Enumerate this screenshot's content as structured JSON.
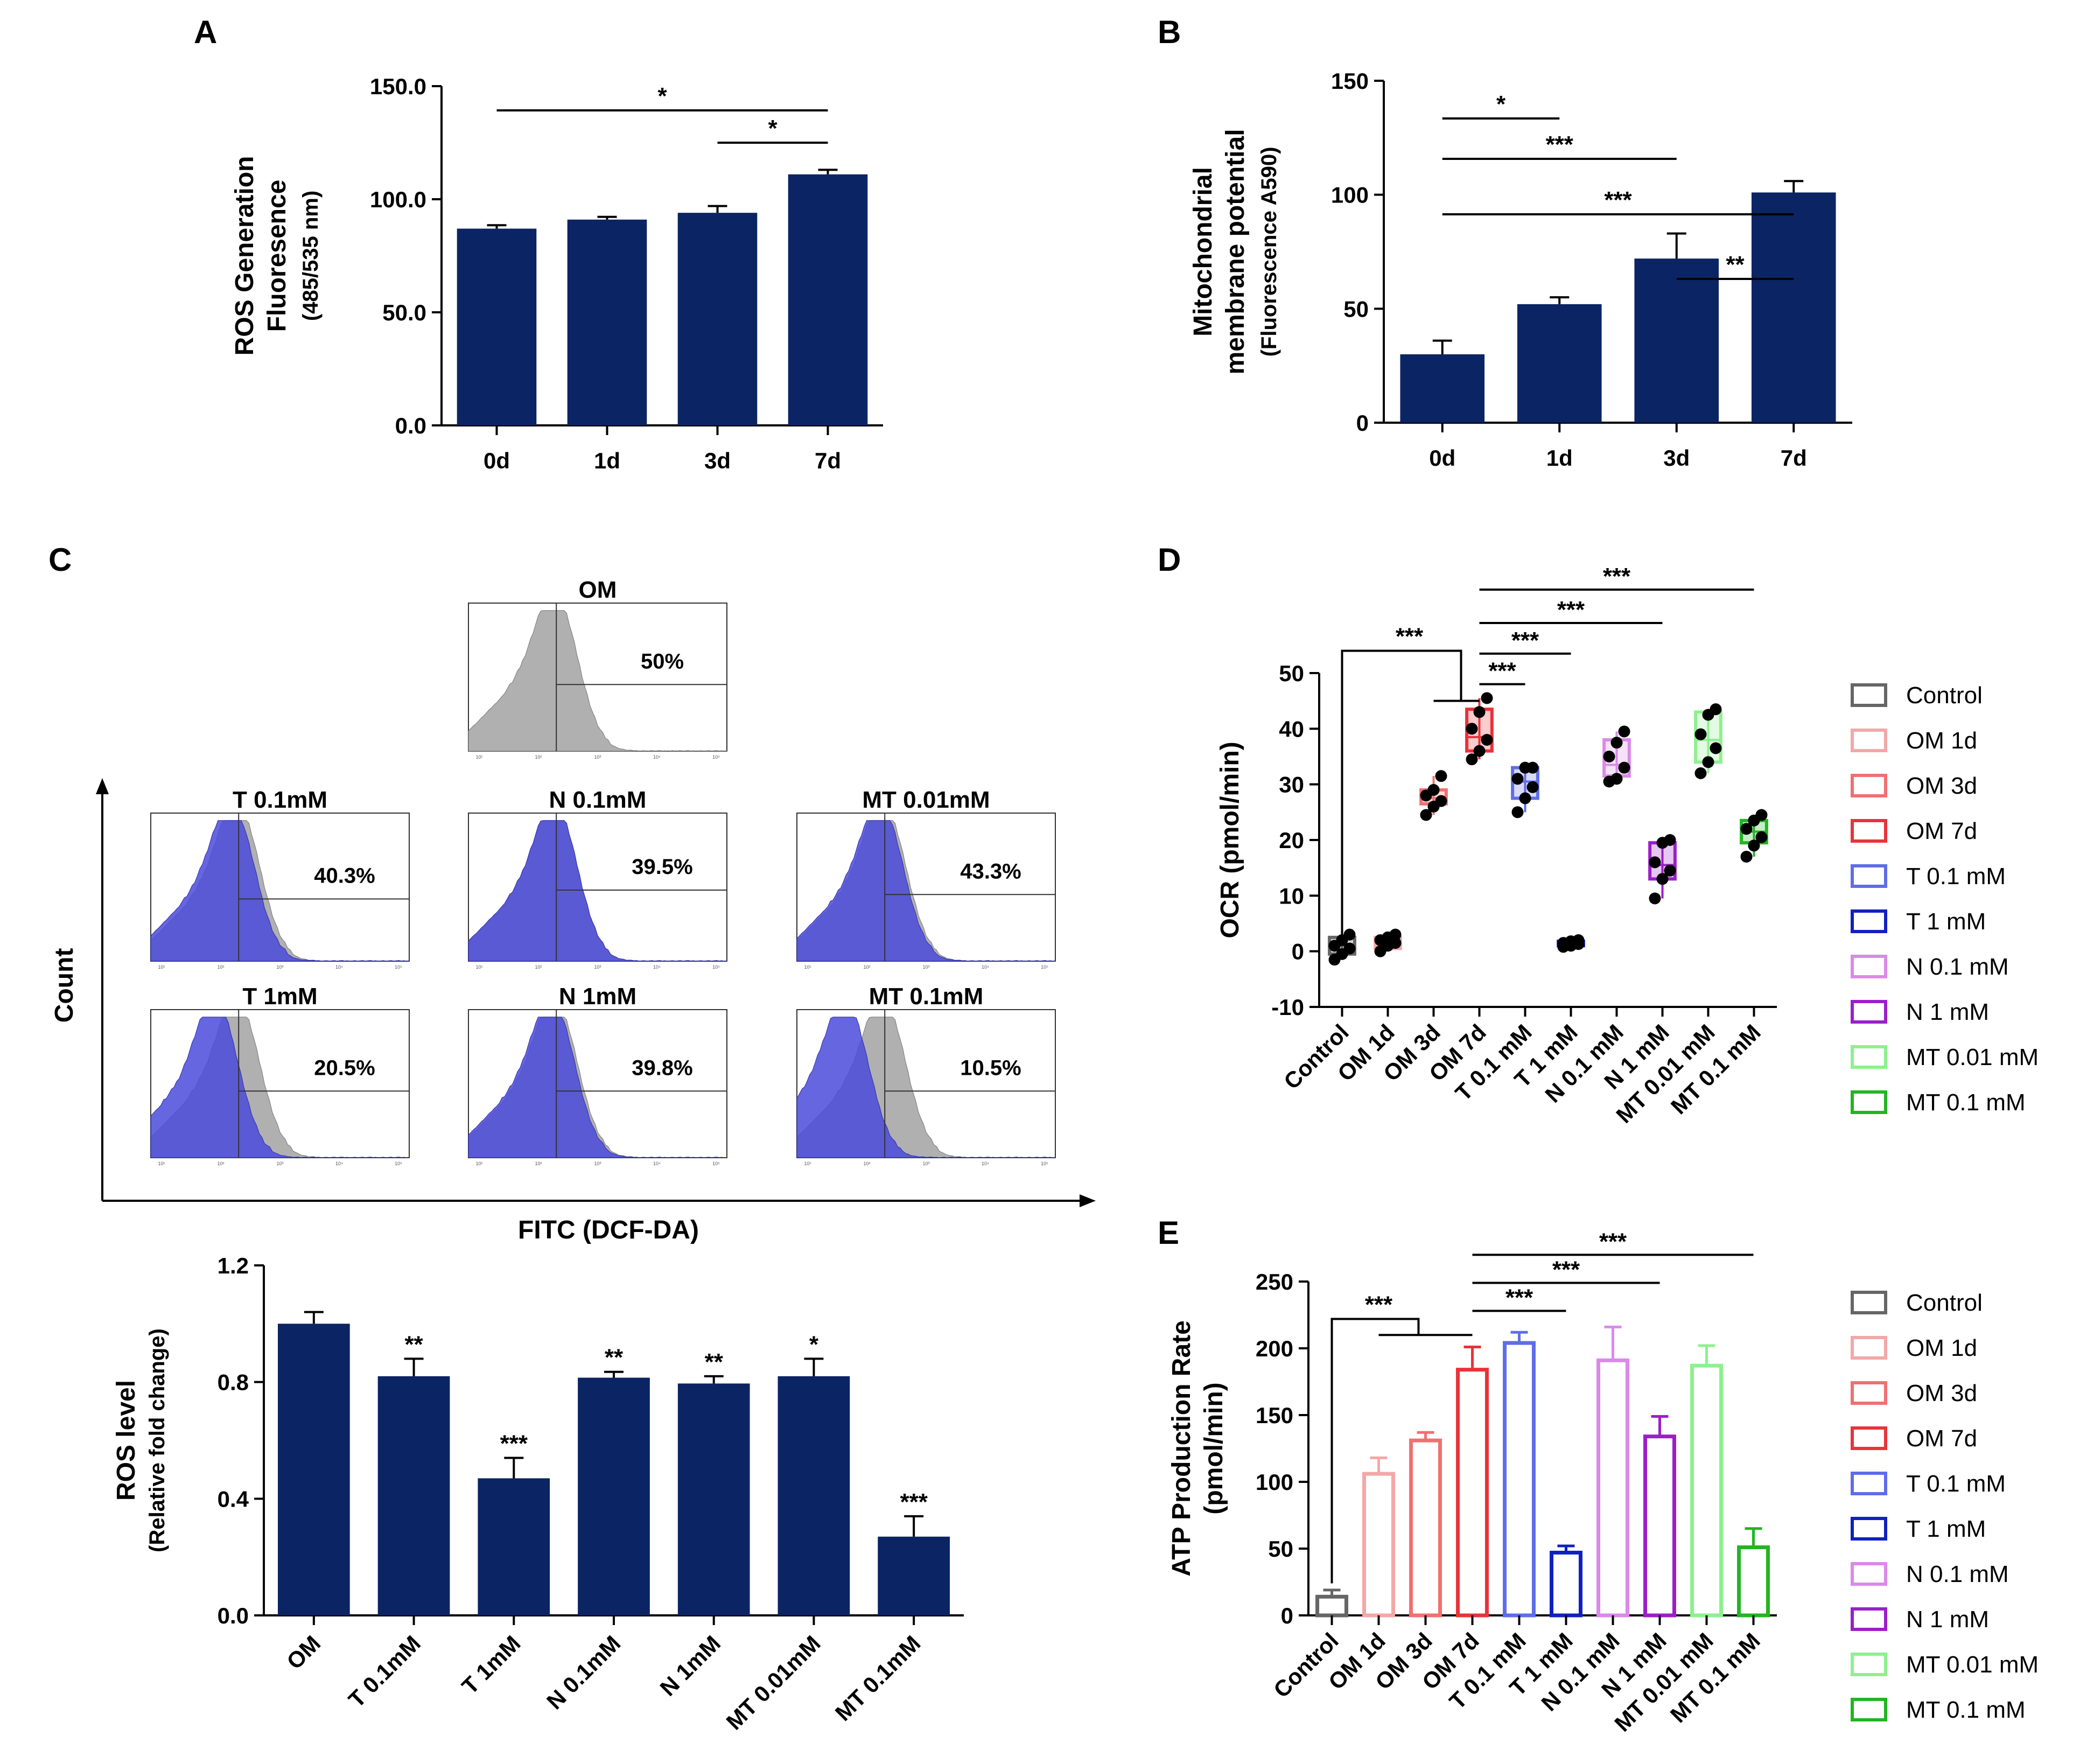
{
  "colors": {
    "navy": "#0b2463",
    "black": "#000000"
  },
  "chart_data": [
    {
      "panel": "A",
      "type": "bar",
      "ylabel_lines": [
        "ROS Generation",
        "Fluoresence",
        "(485/535 nm)"
      ],
      "categories": [
        "0d",
        "1d",
        "3d",
        "7d"
      ],
      "values": [
        87,
        91,
        94,
        111
      ],
      "errors": [
        1.5,
        1.2,
        3,
        2
      ],
      "ylim": [
        0,
        150
      ],
      "yticks": [
        0,
        50,
        100,
        150
      ],
      "ytick_labels": [
        "0.0",
        "50.0",
        "100.0",
        "150.0"
      ],
      "sig": [
        {
          "from": 0,
          "to": 3,
          "label": "*"
        },
        {
          "from": 2,
          "to": 3,
          "label": "*"
        }
      ]
    },
    {
      "panel": "B",
      "type": "bar",
      "ylabel_lines": [
        "Mitochondrial",
        "membrane potential",
        "(Fluorescence A590)"
      ],
      "categories": [
        "0d",
        "1d",
        "3d",
        "7d"
      ],
      "values": [
        30,
        52,
        72,
        101
      ],
      "errors": [
        6,
        3,
        11,
        5
      ],
      "ylim": [
        0,
        150
      ],
      "yticks": [
        0,
        50,
        100,
        150
      ],
      "ytick_labels": [
        "0",
        "50",
        "100",
        "150"
      ],
      "sig": [
        {
          "from": 0,
          "to": 1,
          "label": "*"
        },
        {
          "from": 0,
          "to": 2,
          "label": "***"
        },
        {
          "from": 0,
          "to": 3,
          "label": "***"
        },
        {
          "from": 2,
          "to": 3,
          "label": "**"
        }
      ]
    },
    {
      "panel": "C-flow",
      "type": "histogram",
      "ylabel": "Count",
      "xlabel": "FITC (DCF-DA)",
      "plots": [
        {
          "title": "OM",
          "pct": "50%"
        },
        {
          "title": "T 0.1mM",
          "pct": "40.3%"
        },
        {
          "title": "N 0.1mM",
          "pct": "39.5%"
        },
        {
          "title": "MT 0.01mM",
          "pct": "43.3%"
        },
        {
          "title": "T 1mM",
          "pct": "20.5%"
        },
        {
          "title": "N 1mM",
          "pct": "39.8%"
        },
        {
          "title": "MT 0.1mM",
          "pct": "10.5%"
        }
      ],
      "tick_labels": [
        "10¹",
        "10²",
        "10³",
        "10⁴",
        "10⁵"
      ]
    },
    {
      "panel": "C-bar",
      "type": "bar",
      "ylabel_lines": [
        "ROS level",
        "(Relative fold change)"
      ],
      "categories": [
        "OM",
        "T 0.1mM",
        "T 1mM",
        "N 0.1mM",
        "N 1mM",
        "MT 0.01mM",
        "MT 0.1mM"
      ],
      "values": [
        1.0,
        0.82,
        0.47,
        0.815,
        0.795,
        0.82,
        0.27
      ],
      "errors": [
        0.04,
        0.06,
        0.07,
        0.02,
        0.025,
        0.06,
        0.07
      ],
      "stars": [
        "",
        "**",
        "***",
        "**",
        "**",
        "*",
        "***"
      ],
      "ylim": [
        0,
        1.2
      ],
      "yticks": [
        0,
        0.4,
        0.8,
        1.2
      ],
      "ytick_labels": [
        "0.0",
        "0.4",
        "0.8",
        "1.2"
      ]
    },
    {
      "panel": "D",
      "type": "box",
      "ylabel": "OCR (pmol/min)",
      "categories": [
        "Control",
        "OM 1d",
        "OM 3d",
        "OM 7d",
        "T 0.1 mM",
        "T 1 mM",
        "N 0.1 mM",
        "N 1 mM",
        "MT 0.01 mM",
        "MT 0.1 mM"
      ],
      "colors": [
        "#666666",
        "#f4a7a7",
        "#f07070",
        "#e8333a",
        "#5e6de8",
        "#1020c0",
        "#d98ae8",
        "#9b1ec9",
        "#8ef08e",
        "#22b522"
      ],
      "boxes": [
        {
          "min": -1.5,
          "q1": -0.5,
          "med": 1,
          "q3": 2.5,
          "max": 3
        },
        {
          "min": 0,
          "q1": 0.5,
          "med": 1.5,
          "q3": 2.5,
          "max": 3
        },
        {
          "min": 24.5,
          "q1": 26.5,
          "med": 27.5,
          "q3": 29,
          "max": 31.5
        },
        {
          "min": 34.5,
          "q1": 36,
          "med": 38.5,
          "q3": 43.5,
          "max": 45.5
        },
        {
          "min": 25,
          "q1": 27.5,
          "med": 30.5,
          "q3": 33,
          "max": 33
        },
        {
          "min": 0.8,
          "q1": 1.0,
          "med": 1.5,
          "q3": 1.8,
          "max": 2
        },
        {
          "min": 30.5,
          "q1": 31.5,
          "med": 33.5,
          "q3": 38,
          "max": 39.5
        },
        {
          "min": 9.5,
          "q1": 13,
          "med": 15.5,
          "q3": 19.5,
          "max": 20
        },
        {
          "min": 32,
          "q1": 34,
          "med": 38,
          "q3": 43,
          "max": 43.5
        },
        {
          "min": 17,
          "q1": 19.5,
          "med": 21.5,
          "q3": 23.5,
          "max": 24.5
        }
      ],
      "points": [
        [
          -1.5,
          -0.5,
          0.5,
          1,
          2,
          3
        ],
        [
          0,
          1,
          1.5,
          2,
          2.5,
          3
        ],
        [
          24.5,
          26,
          27,
          28,
          29,
          31.5
        ],
        [
          34.5,
          36,
          38,
          40,
          43,
          45.5
        ],
        [
          25,
          27.5,
          29.5,
          31,
          33,
          33
        ],
        [
          0.8,
          1.0,
          1.3,
          1.5,
          1.8,
          2
        ],
        [
          30.5,
          31,
          33,
          35,
          37.5,
          39.5
        ],
        [
          9.5,
          13,
          14.5,
          16,
          19.5,
          20
        ],
        [
          32,
          34,
          36.5,
          39,
          42.5,
          43.5
        ],
        [
          17,
          19,
          20.5,
          22,
          23.5,
          24.5
        ]
      ],
      "ylim": [
        -10,
        50
      ],
      "yticks": [
        -10,
        0,
        10,
        20,
        30,
        40,
        50
      ],
      "ytick_labels": [
        "-10",
        "0",
        "10",
        "20",
        "30",
        "40",
        "50"
      ],
      "legend": [
        "Control",
        "OM 1d",
        "OM 3d",
        "OM 7d",
        "T 0.1 mM",
        "T 1 mM",
        "N 0.1 mM",
        "N 1 mM",
        "MT 0.01 mM",
        "MT 0.1 mM"
      ],
      "sig_labels": [
        "***",
        "***",
        "***",
        "***",
        "***"
      ]
    },
    {
      "panel": "E",
      "type": "bar",
      "ylabel_lines": [
        "ATP Production Rate",
        "(pmol/min)"
      ],
      "categories": [
        "Control",
        "OM 1d",
        "OM 3d",
        "OM 7d",
        "T 0.1 mM",
        "T 1 mM",
        "N 0.1 mM",
        "N 1 mM",
        "MT 0.01 mM",
        "MT 0.1 mM"
      ],
      "colors": [
        "#666666",
        "#f4a7a7",
        "#f07070",
        "#e8333a",
        "#5e6de8",
        "#1020c0",
        "#d98ae8",
        "#9b1ec9",
        "#8ef08e",
        "#22b522"
      ],
      "values": [
        14,
        106,
        131,
        184,
        204,
        47,
        191,
        134,
        187,
        51
      ],
      "errors": [
        5,
        12,
        6,
        17,
        8,
        5,
        25,
        15,
        15,
        14
      ],
      "ylim": [
        0,
        250
      ],
      "yticks": [
        0,
        50,
        100,
        150,
        200,
        250
      ],
      "ytick_labels": [
        "0",
        "50",
        "100",
        "150",
        "200",
        "250"
      ],
      "legend": [
        "Control",
        "OM 1d",
        "OM 3d",
        "OM 7d",
        "T 0.1 mM",
        "T 1 mM",
        "N 0.1 mM",
        "N 1 mM",
        "MT 0.01 mM",
        "MT 0.1 mM"
      ],
      "sig_labels": [
        "***",
        "***",
        "***",
        "***"
      ]
    }
  ],
  "panel_letters": [
    "A",
    "B",
    "C",
    "D",
    "E"
  ]
}
